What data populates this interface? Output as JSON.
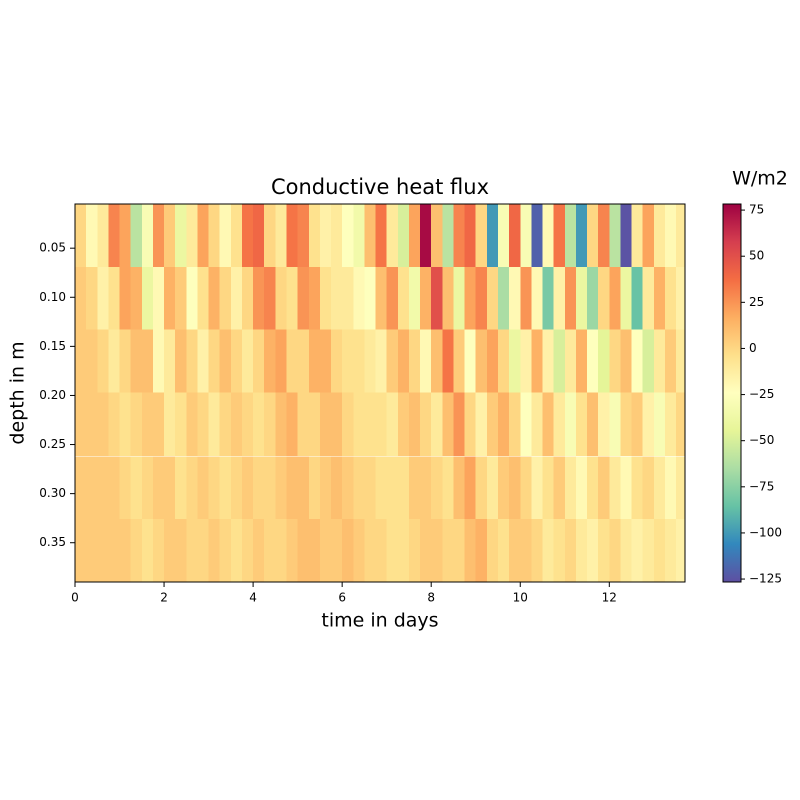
{
  "chart_data": {
    "type": "heatmap",
    "title": "Conductive heat flux",
    "x_label": "time in days",
    "y_label": "depth in m",
    "colorbar_label": "W/m2",
    "colormap": "Spectral_r",
    "xlim": [
      0,
      13.7
    ],
    "xticks": [
      0,
      2,
      4,
      6,
      8,
      10,
      12
    ],
    "ylim": [
      0.005,
      0.39
    ],
    "y_inverted": true,
    "yticks": [
      0.05,
      {
        "value": 0.1,
        "label": "0.10"
      },
      0.15,
      {
        "value": 0.2,
        "label": "0.20"
      },
      0.25,
      {
        "value": 0.3,
        "label": "0.30"
      },
      0.35
    ],
    "zlim": [
      -126.6,
      78.3
    ],
    "zticks": [
      75,
      50,
      25,
      0,
      {
        "value": -25,
        "label": "−25"
      },
      {
        "value": -50,
        "label": "−50"
      },
      {
        "value": -75,
        "label": "−75"
      },
      {
        "value": -100,
        "label": "−100"
      },
      {
        "value": -125,
        "label": "−125"
      }
    ],
    "x": [
      0.125,
      0.375,
      0.625,
      0.875,
      1.125,
      1.375,
      1.625,
      1.875,
      2.125,
      2.375,
      2.625,
      2.875,
      3.125,
      3.375,
      3.625,
      3.875,
      4.125,
      4.375,
      4.625,
      4.875,
      5.125,
      5.375,
      5.625,
      5.875,
      6.125,
      6.375,
      6.625,
      6.875,
      7.125,
      7.375,
      7.625,
      7.875,
      8.125,
      8.375,
      8.625,
      8.875,
      9.125,
      9.375,
      9.625,
      9.875,
      10.125,
      10.375,
      10.625,
      10.875,
      11.125,
      11.375,
      11.625,
      11.875,
      12.125,
      12.375,
      12.625,
      12.875,
      13.125,
      13.375,
      13.625
    ],
    "y": [
      0.037,
      0.101,
      0.165,
      0.229,
      0.294,
      0.358
    ],
    "z": [
      [
        0,
        -20,
        -10,
        30,
        20,
        -60,
        -30,
        25,
        5,
        -40,
        -10,
        20,
        0,
        -20,
        -5,
        35,
        40,
        0,
        -10,
        35,
        30,
        -5,
        -15,
        -10,
        -25,
        -35,
        10,
        35,
        -10,
        -50,
        20,
        75,
        10,
        -60,
        30,
        40,
        0,
        -100,
        -30,
        40,
        -30,
        -120,
        -20,
        35,
        -60,
        -100,
        0,
        30,
        -60,
        -125,
        -10,
        20,
        -10,
        -20,
        -10
      ],
      [
        5,
        0,
        -15,
        -5,
        20,
        15,
        -40,
        -20,
        15,
        5,
        -25,
        -5,
        15,
        0,
        -15,
        0,
        25,
        30,
        0,
        -5,
        25,
        20,
        -5,
        -10,
        -10,
        -20,
        -25,
        10,
        25,
        -5,
        -35,
        15,
        50,
        10,
        -40,
        20,
        30,
        0,
        -65,
        -20,
        25,
        -20,
        -80,
        -15,
        25,
        -40,
        -70,
        0,
        20,
        -40,
        -85,
        -10,
        15,
        -5,
        -15
      ],
      [
        5,
        5,
        0,
        -10,
        0,
        10,
        10,
        -20,
        -10,
        10,
        0,
        -15,
        0,
        10,
        0,
        -10,
        0,
        15,
        20,
        0,
        0,
        15,
        15,
        0,
        -5,
        -5,
        -10,
        -15,
        5,
        15,
        0,
        -20,
        10,
        35,
        5,
        -25,
        10,
        20,
        0,
        -40,
        -15,
        15,
        -15,
        -50,
        -10,
        15,
        -25,
        -45,
        0,
        10,
        -25,
        -50,
        -10,
        5,
        -10
      ],
      [
        5,
        5,
        5,
        0,
        -5,
        0,
        5,
        5,
        -10,
        -5,
        5,
        0,
        -10,
        0,
        5,
        0,
        -5,
        0,
        10,
        15,
        0,
        0,
        10,
        10,
        0,
        -5,
        -5,
        -5,
        -10,
        5,
        10,
        0,
        -10,
        10,
        25,
        0,
        -15,
        5,
        15,
        0,
        -25,
        -10,
        10,
        -10,
        -30,
        -5,
        10,
        -15,
        -30,
        0,
        5,
        -15,
        -30,
        -10,
        0
      ],
      [
        5,
        5,
        5,
        5,
        0,
        -5,
        0,
        5,
        5,
        -5,
        0,
        5,
        0,
        -5,
        0,
        5,
        0,
        0,
        5,
        10,
        10,
        0,
        5,
        10,
        5,
        0,
        0,
        -5,
        -5,
        -5,
        5,
        5,
        0,
        -5,
        10,
        20,
        0,
        -10,
        5,
        10,
        0,
        -15,
        -5,
        5,
        -10,
        -20,
        -5,
        5,
        -10,
        -20,
        -5,
        0,
        -10,
        -20,
        -10
      ],
      [
        5,
        5,
        5,
        5,
        5,
        0,
        -5,
        0,
        5,
        5,
        0,
        0,
        5,
        0,
        -5,
        0,
        5,
        0,
        0,
        5,
        10,
        10,
        5,
        5,
        10,
        5,
        0,
        0,
        -5,
        -5,
        0,
        5,
        5,
        0,
        0,
        10,
        15,
        0,
        -5,
        5,
        5,
        0,
        -10,
        -5,
        0,
        -10,
        -15,
        -5,
        0,
        -10,
        -15,
        -10,
        -5,
        -10,
        -15
      ]
    ]
  }
}
